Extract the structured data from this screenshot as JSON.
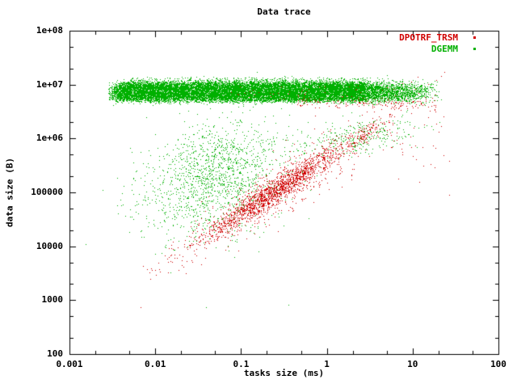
{
  "chart_data": {
    "type": "scatter",
    "title": "Data trace",
    "xlabel": "tasks size (ms)",
    "ylabel": "data size (B)",
    "x_log": true,
    "y_log": true,
    "xlim": [
      0.001,
      100
    ],
    "ylim": [
      100,
      100000000
    ],
    "grid": false,
    "legend_position": "top-right-inside",
    "x_ticks": [
      {
        "v": 0.001,
        "label": "0.001"
      },
      {
        "v": 0.01,
        "label": "0.01"
      },
      {
        "v": 0.1,
        "label": "0.1"
      },
      {
        "v": 1,
        "label": "1"
      },
      {
        "v": 10,
        "label": "10"
      },
      {
        "v": 100,
        "label": "100"
      }
    ],
    "y_ticks": [
      {
        "v": 100,
        "label": "100"
      },
      {
        "v": 1000,
        "label": "1000"
      },
      {
        "v": 10000,
        "label": "10000"
      },
      {
        "v": 100000,
        "label": "100000"
      },
      {
        "v": 1000000,
        "label": "1e+06"
      },
      {
        "v": 10000000,
        "label": "1e+07"
      },
      {
        "v": 100000000,
        "label": "1e+08"
      }
    ],
    "minor_tick_multiples": [
      2,
      5
    ],
    "axis_color": "#000000",
    "background_color": "#ffffff",
    "point_style": "dots-1px",
    "series": [
      {
        "name": "DPOTRF_TRSM",
        "color": "#d00000",
        "description": "diagonal correlation streak: data size rises ~linearly with task time from (0.007ms,3kB) to (10ms,3MB), dense core near (0.2ms,100kB); plus specks under the green band and sparse right-side scatter",
        "clusters": [
          {
            "t": "l",
            "n": 1500,
            "a": 1.02,
            "b": 5.64,
            "xg": {
              "cx": -0.62,
              "sx": 0.38
            },
            "sy": 0.12
          },
          {
            "t": "l",
            "n": 600,
            "a": 1.02,
            "b": 5.64,
            "xg": {
              "cx": -0.45,
              "sx": 0.55
            },
            "sy": 0.28
          },
          {
            "t": "l",
            "n": 70,
            "a": 1.02,
            "b": 5.64,
            "xu": [
              -2.25,
              -1.15
            ],
            "bias": 1,
            "sy": 0.12
          },
          {
            "t": "l",
            "n": 130,
            "a": 1.02,
            "b": 5.64,
            "xu": [
              0.25,
              1.0
            ],
            "bias": -1,
            "sy": 0.1
          },
          {
            "t": "gu",
            "n": 140,
            "x": [
              -0.35,
              1.28
            ],
            "cy": 6.66,
            "sy": 0.05
          },
          {
            "t": "u",
            "n": 40,
            "x": [
              -1.2,
              0.4
            ],
            "y": [
              6.72,
              7.0
            ]
          },
          {
            "t": "gu",
            "n": 55,
            "x": [
              0.7,
              1.45
            ],
            "cy": 6.2,
            "sy": 0.5
          },
          {
            "t": "s",
            "pts": [
              [
                -2.17,
                2.87
              ]
            ]
          }
        ]
      },
      {
        "name": "DGEMM",
        "color": "#00b000",
        "description": "dense horizontal band at 5MB-10MB spanning 0.004-20ms, plus diffuse cloud centered near (0.05ms,200kB) and mixed cluster near (2ms,1MB)",
        "clusters": [
          {
            "t": "u",
            "n": 15000,
            "x": [
              -2.42,
              0.45
            ],
            "y": [
              6.71,
              7.03
            ],
            "fy": 0.03
          },
          {
            "t": "tri",
            "n": 1600,
            "dir": -1,
            "x": [
              0.45,
              1.32
            ],
            "y": [
              6.73,
              7.0
            ],
            "fy": 0.05
          },
          {
            "t": "tri",
            "n": 260,
            "dir": 1,
            "x": [
              -2.56,
              -2.42
            ],
            "y": [
              6.72,
              7.0
            ],
            "fy": 0.06
          },
          {
            "t": "u",
            "n": 420,
            "x": [
              -2.3,
              0.5
            ],
            "y": [
              7.02,
              7.13
            ],
            "fy": 0.02
          },
          {
            "t": "g",
            "n": 1500,
            "cx": -1.28,
            "cy": 5.3,
            "sx": 0.42,
            "sy": 0.52,
            "rho": 0.3
          },
          {
            "t": "g",
            "n": 300,
            "cx": 0.33,
            "cy": 6.02,
            "sx": 0.33,
            "sy": 0.18,
            "rho": 0.45
          },
          {
            "t": "gu",
            "n": 50,
            "x": [
              0.5,
              1.35
            ],
            "cy": 6.85,
            "sy": 0.12
          },
          {
            "t": "s",
            "pts": [
              [
                -1.41,
                2.87
              ],
              [
                -0.45,
                2.92
              ]
            ]
          }
        ]
      }
    ]
  }
}
